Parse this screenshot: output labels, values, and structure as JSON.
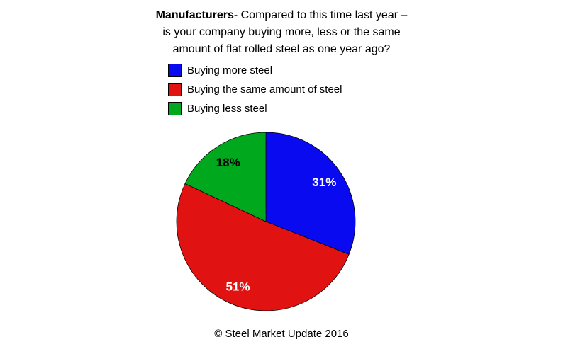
{
  "title": {
    "bold_part": "Manufacturers",
    "line1_rest": "- Compared to this time last year –",
    "line2": "is your company buying more, less or the same",
    "line3": "amount of flat rolled steel as one year ago?"
  },
  "chart_data": {
    "type": "pie",
    "title": "Manufacturers- Compared to this time last year – is your company buying more, less or the same amount of flat rolled steel as one year ago?",
    "start_angle_deg": -90,
    "direction": "clockwise",
    "data_label_format": "percent",
    "legend_position": "above-chart-left",
    "slices": [
      {
        "label": "Buying more steel",
        "value": 31,
        "color": "#0a0af0",
        "text_color": "#ffffff"
      },
      {
        "label": "Buying the same amount of steel",
        "value": 51,
        "color": "#e01212",
        "text_color": "#ffffff"
      },
      {
        "label": "Buying less steel",
        "value": 18,
        "color": "#00a81e",
        "text_color": "#000000"
      }
    ]
  },
  "footer": {
    "text": "© Steel Market Update 2016"
  }
}
